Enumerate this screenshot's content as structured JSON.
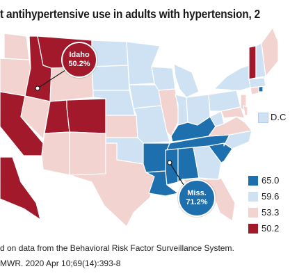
{
  "title": "t antihypertensive use in adults with hypertension, 2",
  "callouts": {
    "idaho": {
      "name": "Idaho",
      "value": "50.2%"
    },
    "miss": {
      "name": "Miss.",
      "value": "71.2%"
    }
  },
  "dc_label": "D.C",
  "legend": [
    {
      "label": "65.0",
      "color": "#1d6fae"
    },
    {
      "label": "59.6",
      "color": "#cfe2f3"
    },
    {
      "label": "53.3",
      "color": "#f2d3cf"
    },
    {
      "label": "50.2",
      "color": "#a1192b"
    }
  ],
  "footnotes": [
    "d on data from the Behavioral Risk Factor Surveillance System.",
    "MWR. 2020 Apr 10;69(14):393-8"
  ],
  "colors": {
    "dark_red": "#a1192b",
    "light_pink": "#f2d3cf",
    "light_blue": "#cfe2f3",
    "dark_blue": "#1d6fae",
    "border": "#ffffff"
  }
}
